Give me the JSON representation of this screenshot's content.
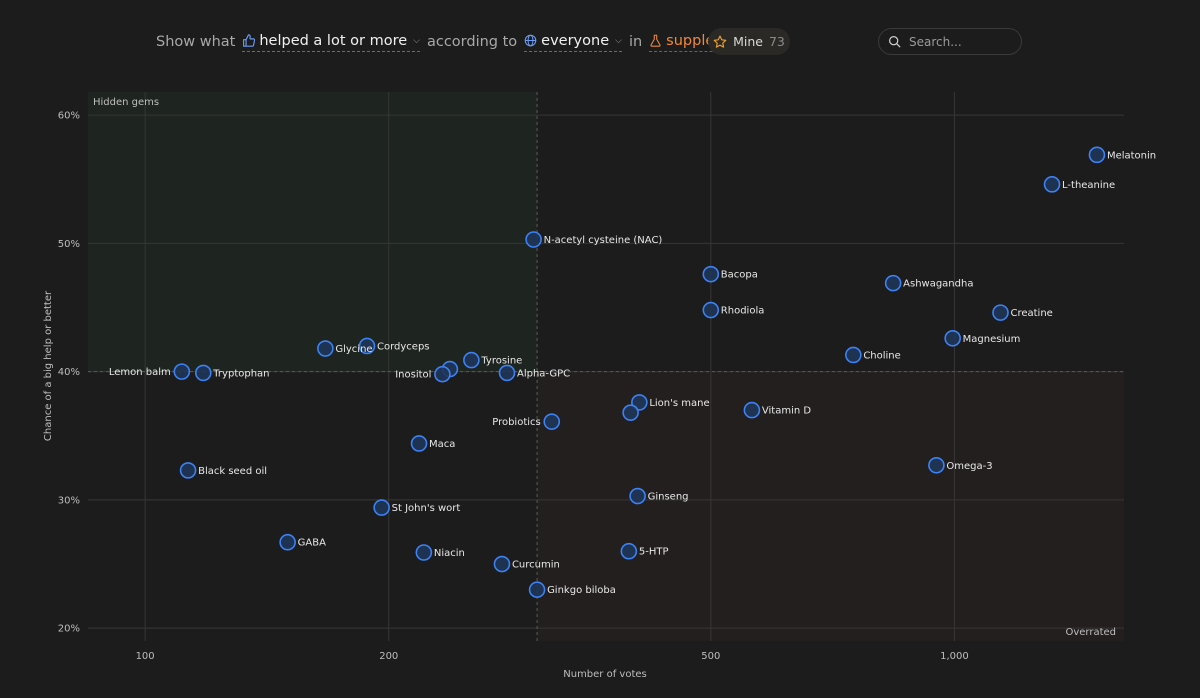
{
  "filters": {
    "show_label": "Show what",
    "outcome": "helped a lot or more",
    "according_label": "according to",
    "audience": "everyone",
    "in_label": "in",
    "category": "supplements"
  },
  "mine": {
    "label": "Mine",
    "count": "73"
  },
  "search": {
    "placeholder": "Search..."
  },
  "colors": {
    "accent_orange": "#f0893c",
    "point_blue": "#3b82f6",
    "hidden_gems_bg": "#1e241f",
    "overrated_bg": "#241f1f"
  },
  "chart_data": {
    "type": "scatter",
    "xlabel": "Number of votes",
    "ylabel": "Chance of a big help or better",
    "x_scale": "log",
    "x_ticks": [
      100,
      200,
      500,
      1000
    ],
    "x_tick_labels": [
      "100",
      "200",
      "500",
      "1,000"
    ],
    "xlim": [
      85,
      1620
    ],
    "y_ticks": [
      20,
      30,
      40,
      50,
      60
    ],
    "y_tick_labels": [
      "20%",
      "30%",
      "40%",
      "50%",
      "60%"
    ],
    "ylim": [
      19.0,
      61.8
    ],
    "threshold_x": 305,
    "threshold_y": 40,
    "quadrants": {
      "top_left": "Hidden gems",
      "bottom_right": "Overrated"
    },
    "points": [
      {
        "name": "Melatonin",
        "x": 1500,
        "y": 56.9
      },
      {
        "name": "L-theanine",
        "x": 1320,
        "y": 54.6
      },
      {
        "name": "N-acetyl cysteine (NAC)",
        "x": 302,
        "y": 50.3
      },
      {
        "name": "Bacopa",
        "x": 500,
        "y": 47.6
      },
      {
        "name": "Ashwagandha",
        "x": 840,
        "y": 46.9
      },
      {
        "name": "Creatine",
        "x": 1140,
        "y": 44.6
      },
      {
        "name": "Rhodiola",
        "x": 500,
        "y": 44.8
      },
      {
        "name": "Magnesium",
        "x": 995,
        "y": 42.6
      },
      {
        "name": "Choline",
        "x": 750,
        "y": 41.3
      },
      {
        "name": "Cordyceps",
        "x": 188,
        "y": 42.0
      },
      {
        "name": "Glycine",
        "x": 167,
        "y": 41.8
      },
      {
        "name": "Tyrosine",
        "x": 253,
        "y": 40.9
      },
      {
        "name": "",
        "x": 238,
        "y": 40.2
      },
      {
        "name": "Inositol",
        "x": 233,
        "y": 39.8
      },
      {
        "name": "Alpha-GPC",
        "x": 280,
        "y": 39.9
      },
      {
        "name": "Lemon balm",
        "x": 111,
        "y": 40.0
      },
      {
        "name": "Tryptophan",
        "x": 118,
        "y": 39.9
      },
      {
        "name": "Lion's mane",
        "x": 408,
        "y": 37.6
      },
      {
        "name": "",
        "x": 398,
        "y": 36.8
      },
      {
        "name": "Vitamin D",
        "x": 562,
        "y": 37.0
      },
      {
        "name": "Probiotics",
        "x": 318,
        "y": 36.1
      },
      {
        "name": "Maca",
        "x": 218,
        "y": 34.4
      },
      {
        "name": "Black seed oil",
        "x": 113,
        "y": 32.3
      },
      {
        "name": "Omega-3",
        "x": 950,
        "y": 32.7
      },
      {
        "name": "Ginseng",
        "x": 406,
        "y": 30.3
      },
      {
        "name": "St John's wort",
        "x": 196,
        "y": 29.4
      },
      {
        "name": "GABA",
        "x": 150,
        "y": 26.7
      },
      {
        "name": "Niacin",
        "x": 221,
        "y": 25.9
      },
      {
        "name": "5-HTP",
        "x": 396,
        "y": 26.0
      },
      {
        "name": "Curcumin",
        "x": 276,
        "y": 25.0
      },
      {
        "name": "Ginkgo biloba",
        "x": 305,
        "y": 23.0
      }
    ]
  }
}
